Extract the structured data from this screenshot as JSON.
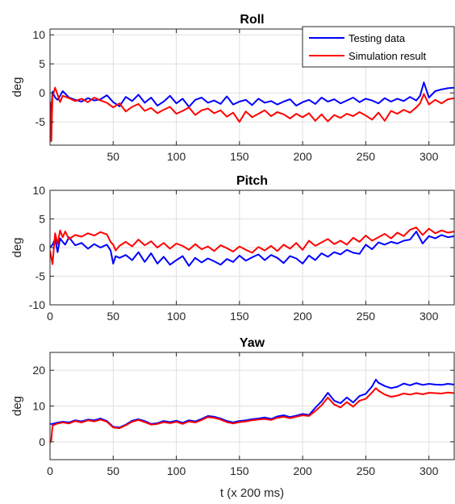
{
  "chart_data": [
    {
      "type": "line",
      "title": "Roll",
      "xlabel": "",
      "ylabel": "deg",
      "xlim": [
        0,
        320
      ],
      "ylim": [
        -9,
        11
      ],
      "xticks": [
        50,
        100,
        150,
        200,
        250,
        300
      ],
      "yticks": [
        10,
        5,
        0,
        -5
      ],
      "grid": true,
      "legend": "top-right",
      "series": [
        {
          "name": "Testing data",
          "color": "#0000ff",
          "x": [
            0,
            2,
            4,
            6,
            8,
            10,
            15,
            20,
            25,
            30,
            35,
            40,
            45,
            50,
            55,
            60,
            65,
            70,
            75,
            80,
            85,
            90,
            95,
            100,
            105,
            110,
            115,
            120,
            125,
            130,
            135,
            140,
            145,
            150,
            155,
            160,
            165,
            170,
            175,
            180,
            185,
            190,
            195,
            200,
            205,
            210,
            215,
            220,
            225,
            230,
            235,
            240,
            245,
            250,
            255,
            260,
            265,
            270,
            275,
            280,
            285,
            290,
            293,
            296,
            300,
            305,
            310,
            315,
            320
          ],
          "values": [
            -6.5,
            0.2,
            -0.8,
            -1.2,
            -0.5,
            0.3,
            -0.8,
            -1.2,
            -1.5,
            -0.9,
            -1.3,
            -1.1,
            -0.4,
            -1.6,
            -2.3,
            -0.7,
            -1.4,
            -0.3,
            -1.7,
            -0.8,
            -2.2,
            -1.5,
            -0.5,
            -1.8,
            -1.0,
            -2.4,
            -1.2,
            -0.8,
            -1.7,
            -1.3,
            -1.9,
            -0.6,
            -2.0,
            -1.5,
            -1.2,
            -2.1,
            -1.0,
            -1.7,
            -1.4,
            -2.0,
            -1.5,
            -1.1,
            -2.2,
            -1.6,
            -1.2,
            -1.9,
            -0.8,
            -1.5,
            -1.1,
            -1.8,
            -1.3,
            -0.8,
            -1.6,
            -1.0,
            -1.3,
            -1.8,
            -0.9,
            -1.5,
            -1.0,
            -1.4,
            -0.7,
            -1.3,
            -0.5,
            1.8,
            -0.8,
            0.3,
            0.6,
            0.8,
            0.9
          ]
        },
        {
          "name": "Simulation result",
          "color": "#ff0000",
          "x": [
            0,
            1,
            2,
            4,
            6,
            8,
            10,
            15,
            20,
            25,
            30,
            35,
            40,
            45,
            50,
            55,
            60,
            65,
            70,
            75,
            80,
            85,
            90,
            95,
            100,
            105,
            110,
            115,
            120,
            125,
            130,
            135,
            140,
            145,
            150,
            155,
            160,
            165,
            170,
            175,
            180,
            185,
            190,
            195,
            200,
            205,
            210,
            215,
            220,
            225,
            230,
            235,
            240,
            245,
            250,
            255,
            260,
            265,
            270,
            275,
            280,
            285,
            290,
            293,
            296,
            300,
            305,
            310,
            315,
            320
          ],
          "values": [
            -1.5,
            -8.3,
            -0.6,
            0.9,
            -0.3,
            -1.6,
            -0.5,
            -0.9,
            -1.4,
            -1.0,
            -1.6,
            -0.8,
            -1.3,
            -1.7,
            -2.5,
            -1.8,
            -3.2,
            -2.4,
            -1.9,
            -3.1,
            -2.6,
            -3.5,
            -2.9,
            -2.4,
            -3.6,
            -3.1,
            -2.5,
            -3.8,
            -3.0,
            -2.7,
            -3.5,
            -3.0,
            -4.1,
            -3.4,
            -5.0,
            -3.2,
            -4.2,
            -3.6,
            -3.0,
            -4.0,
            -3.3,
            -3.7,
            -4.4,
            -3.6,
            -4.2,
            -3.5,
            -4.8,
            -3.7,
            -4.9,
            -3.8,
            -4.3,
            -3.6,
            -4.0,
            -3.3,
            -3.9,
            -4.6,
            -3.4,
            -4.8,
            -3.1,
            -3.6,
            -2.9,
            -3.4,
            -2.5,
            -1.8,
            -0.2,
            -2.0,
            -1.2,
            -1.8,
            -1.1,
            -0.9
          ]
        }
      ]
    },
    {
      "type": "line",
      "title": "Pitch",
      "xlabel": "",
      "ylabel": "deg",
      "xlim": [
        0,
        320
      ],
      "ylim": [
        -10,
        10
      ],
      "xticks": [
        0,
        50,
        100,
        150,
        200,
        250,
        300
      ],
      "yticks": [
        10,
        5,
        0,
        -5,
        -10
      ],
      "grid": true,
      "series": [
        {
          "name": "Testing data",
          "color": "#0000ff",
          "x": [
            0,
            2,
            4,
            6,
            8,
            10,
            12,
            15,
            20,
            25,
            30,
            35,
            40,
            45,
            48,
            50,
            52,
            55,
            60,
            65,
            70,
            75,
            80,
            85,
            90,
            95,
            100,
            105,
            110,
            115,
            120,
            125,
            130,
            135,
            140,
            145,
            150,
            155,
            160,
            165,
            170,
            175,
            180,
            185,
            190,
            195,
            200,
            205,
            210,
            215,
            220,
            225,
            230,
            235,
            240,
            245,
            250,
            255,
            260,
            265,
            270,
            275,
            280,
            285,
            290,
            295,
            300,
            305,
            310,
            315,
            320
          ],
          "values": [
            0.0,
            0.5,
            1.5,
            -0.8,
            1.6,
            1.0,
            0.5,
            1.8,
            0.4,
            0.8,
            -0.2,
            0.6,
            0.0,
            0.5,
            -0.5,
            -2.8,
            -1.5,
            -1.8,
            -1.3,
            -2.2,
            -0.8,
            -2.5,
            -1.0,
            -2.8,
            -1.6,
            -3.0,
            -2.2,
            -1.5,
            -3.2,
            -1.8,
            -2.6,
            -1.9,
            -2.4,
            -3.0,
            -2.0,
            -2.5,
            -1.4,
            -2.3,
            -1.7,
            -1.2,
            -2.2,
            -1.3,
            -1.8,
            -2.7,
            -1.5,
            -1.9,
            -2.8,
            -1.4,
            -2.2,
            -1.0,
            -1.6,
            -0.8,
            -1.2,
            -0.4,
            -0.9,
            -1.1,
            0.5,
            -0.3,
            0.9,
            0.5,
            1.0,
            0.7,
            1.2,
            1.4,
            2.8,
            0.7,
            2.0,
            1.6,
            2.2,
            1.8,
            2.0
          ]
        },
        {
          "name": "Simulation result",
          "color": "#ff0000",
          "x": [
            0,
            2,
            4,
            6,
            8,
            10,
            12,
            15,
            20,
            25,
            30,
            35,
            40,
            45,
            48,
            50,
            52,
            55,
            60,
            65,
            70,
            75,
            80,
            85,
            90,
            95,
            100,
            105,
            110,
            115,
            120,
            125,
            130,
            135,
            140,
            145,
            150,
            155,
            160,
            165,
            170,
            175,
            180,
            185,
            190,
            195,
            200,
            205,
            210,
            215,
            220,
            225,
            230,
            235,
            240,
            245,
            250,
            255,
            260,
            265,
            270,
            275,
            280,
            285,
            290,
            295,
            300,
            305,
            310,
            315,
            320
          ],
          "values": [
            -0.5,
            -2.9,
            2.5,
            0.6,
            3.0,
            1.8,
            2.8,
            1.5,
            2.2,
            1.9,
            2.5,
            2.1,
            2.7,
            2.3,
            1.0,
            0.5,
            -0.5,
            0.3,
            1.0,
            0.2,
            1.4,
            0.4,
            1.1,
            0.0,
            0.8,
            -0.2,
            0.7,
            0.3,
            -0.4,
            0.6,
            -0.3,
            0.2,
            -0.6,
            0.4,
            -0.1,
            -0.7,
            0.2,
            -0.4,
            -0.9,
            0.1,
            -0.5,
            0.3,
            -0.6,
            0.5,
            -0.2,
            0.8,
            -0.4,
            1.2,
            0.3,
            0.9,
            1.5,
            0.6,
            1.2,
            0.5,
            1.7,
            1.0,
            2.1,
            1.2,
            1.8,
            2.4,
            1.6,
            2.6,
            2.0,
            3.1,
            3.5,
            2.2,
            3.3,
            2.5,
            3.0,
            2.6,
            2.8
          ]
        }
      ]
    },
    {
      "type": "line",
      "title": "Yaw",
      "xlabel": "t (x 200 ms)",
      "ylabel": "deg",
      "xlim": [
        0,
        320
      ],
      "ylim": [
        -5,
        25
      ],
      "xticks": [
        0,
        50,
        100,
        150,
        200,
        250,
        300
      ],
      "yticks": [
        20,
        10,
        0
      ],
      "grid": true,
      "series": [
        {
          "name": "Testing data",
          "color": "#0000ff",
          "x": [
            0,
            2,
            5,
            10,
            15,
            20,
            25,
            30,
            35,
            40,
            45,
            50,
            55,
            60,
            65,
            70,
            75,
            80,
            85,
            90,
            95,
            100,
            105,
            110,
            115,
            120,
            125,
            130,
            135,
            140,
            145,
            150,
            155,
            160,
            165,
            170,
            175,
            180,
            185,
            190,
            195,
            200,
            205,
            210,
            215,
            220,
            225,
            230,
            235,
            240,
            245,
            250,
            255,
            258,
            260,
            265,
            270,
            275,
            280,
            285,
            290,
            295,
            300,
            305,
            310,
            315,
            320
          ],
          "values": [
            5.0,
            5.0,
            5.3,
            5.6,
            5.4,
            6.0,
            5.7,
            6.2,
            6.0,
            6.5,
            5.8,
            4.2,
            4.0,
            4.8,
            5.9,
            6.3,
            5.8,
            5.0,
            5.2,
            5.8,
            5.5,
            5.9,
            5.3,
            6.0,
            5.7,
            6.4,
            7.2,
            7.0,
            6.5,
            5.8,
            5.4,
            5.8,
            6.0,
            6.3,
            6.5,
            6.8,
            6.4,
            7.1,
            7.4,
            6.9,
            7.3,
            7.8,
            7.5,
            9.5,
            11.3,
            13.7,
            11.5,
            10.8,
            12.4,
            11.0,
            12.8,
            13.4,
            15.5,
            17.4,
            16.5,
            15.6,
            15.0,
            15.4,
            16.3,
            15.8,
            16.4,
            15.9,
            16.2,
            16.0,
            15.9,
            16.2,
            16.0
          ]
        },
        {
          "name": "Simulation result",
          "color": "#ff0000",
          "x": [
            0,
            1,
            2,
            5,
            10,
            15,
            20,
            25,
            30,
            35,
            40,
            45,
            50,
            55,
            60,
            65,
            70,
            75,
            80,
            85,
            90,
            95,
            100,
            105,
            110,
            115,
            120,
            125,
            130,
            135,
            140,
            145,
            150,
            155,
            160,
            165,
            170,
            175,
            180,
            185,
            190,
            195,
            200,
            205,
            210,
            215,
            220,
            225,
            230,
            235,
            240,
            245,
            250,
            255,
            258,
            260,
            265,
            270,
            275,
            280,
            285,
            290,
            295,
            300,
            305,
            310,
            315,
            320
          ],
          "values": [
            -0.3,
            0.5,
            4.5,
            5.0,
            5.4,
            5.1,
            5.8,
            5.4,
            6.0,
            5.7,
            6.2,
            5.6,
            4.0,
            3.8,
            4.6,
            5.6,
            6.1,
            5.5,
            4.8,
            5.0,
            5.5,
            5.2,
            5.6,
            5.0,
            5.7,
            5.4,
            6.1,
            6.9,
            6.7,
            6.2,
            5.5,
            5.1,
            5.5,
            5.7,
            6.0,
            6.2,
            6.4,
            6.1,
            6.7,
            7.0,
            6.6,
            7.0,
            7.4,
            7.2,
            8.6,
            10.2,
            12.4,
            10.4,
            9.6,
            11.1,
            9.8,
            11.5,
            12.0,
            13.8,
            15.0,
            14.3,
            13.2,
            12.6,
            12.9,
            13.5,
            13.2,
            13.6,
            13.3,
            13.7,
            13.6,
            13.5,
            13.8,
            13.6
          ]
        }
      ]
    }
  ]
}
